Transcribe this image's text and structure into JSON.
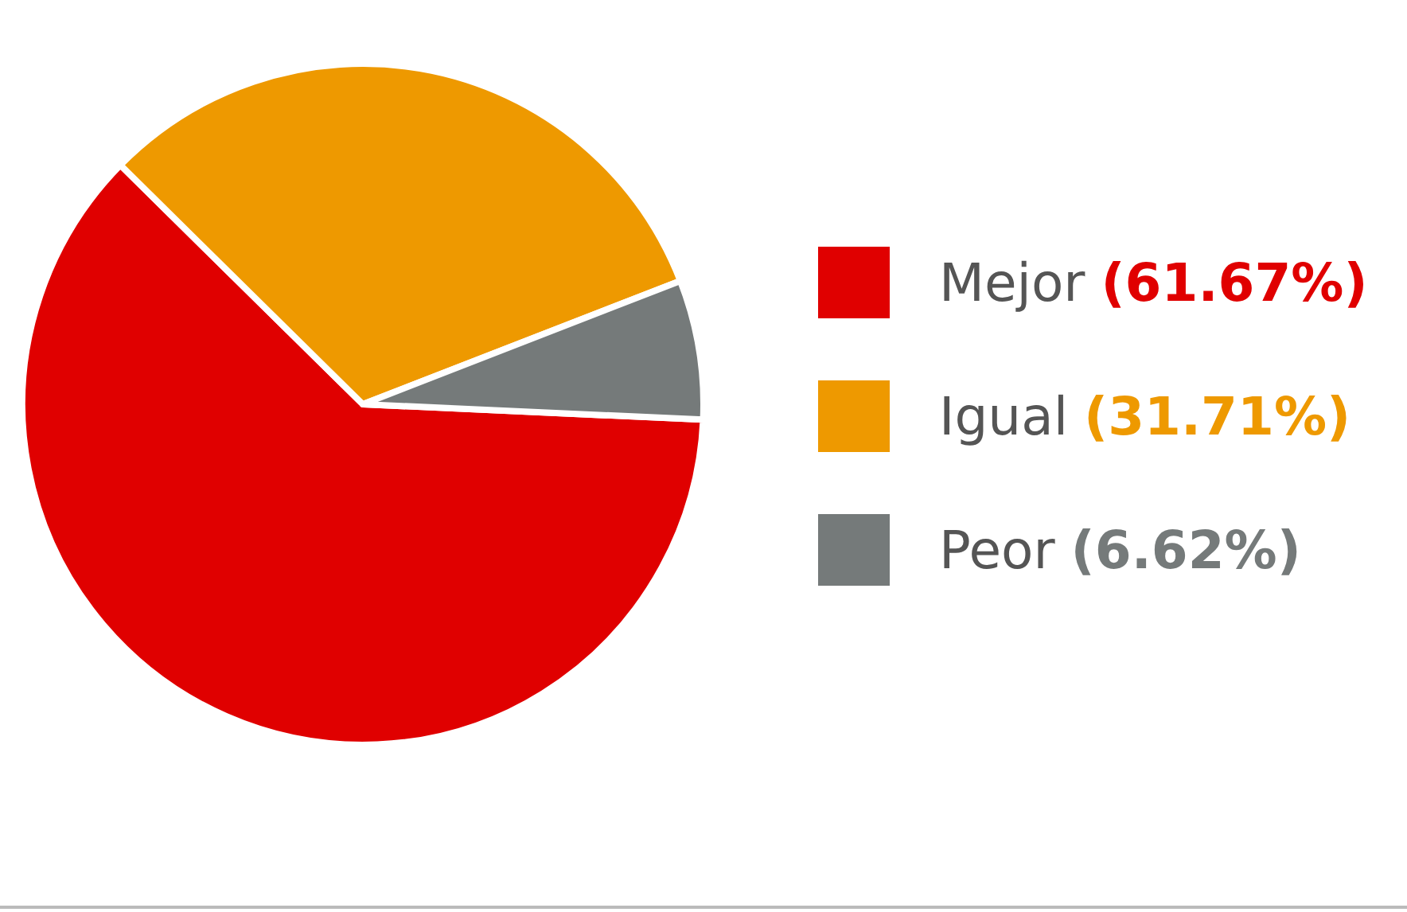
{
  "chart_data": {
    "type": "pie",
    "categories": [
      "Mejor",
      "Igual",
      "Peor"
    ],
    "values": [
      61.67,
      31.71,
      6.62
    ],
    "colors": [
      "#e00000",
      "#ee9900",
      "#757a7a"
    ],
    "value_labels": [
      "(61.67%)",
      "(31.71%)",
      "(6.62%)"
    ],
    "legend": "right"
  }
}
